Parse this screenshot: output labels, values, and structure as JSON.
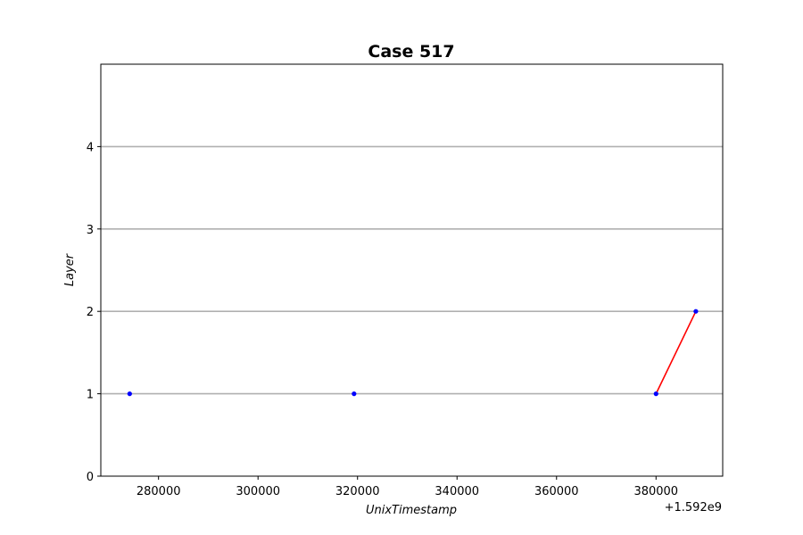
{
  "chart_data": {
    "type": "scatter",
    "title": "Case 517",
    "xlabel": "UnixTimestamp",
    "ylabel": "Layer",
    "x_offset_label": "+1.592e9",
    "xlim": [
      268400,
      393400
    ],
    "ylim": [
      0,
      5
    ],
    "x_ticks": [
      280000,
      300000,
      320000,
      340000,
      360000,
      380000
    ],
    "x_tick_labels": [
      "280000",
      "300000",
      "320000",
      "340000",
      "360000",
      "380000"
    ],
    "y_ticks": [
      0,
      1,
      2,
      3,
      4
    ],
    "y_tick_labels": [
      "0",
      "1",
      "2",
      "3",
      "4"
    ],
    "horizontal_grid_lines": [
      1,
      2,
      3,
      4
    ],
    "points": [
      {
        "x": 274200,
        "y": 1
      },
      {
        "x": 319300,
        "y": 1
      },
      {
        "x": 380000,
        "y": 1
      },
      {
        "x": 388000,
        "y": 2
      }
    ],
    "segments": [
      {
        "x1": 380000,
        "y1": 1,
        "x2": 388000,
        "y2": 2
      }
    ],
    "colors": {
      "points": "#0000ff",
      "segment": "#ff0000",
      "grid": "#b0b0b0",
      "axes": "#000000"
    },
    "grid": true
  }
}
